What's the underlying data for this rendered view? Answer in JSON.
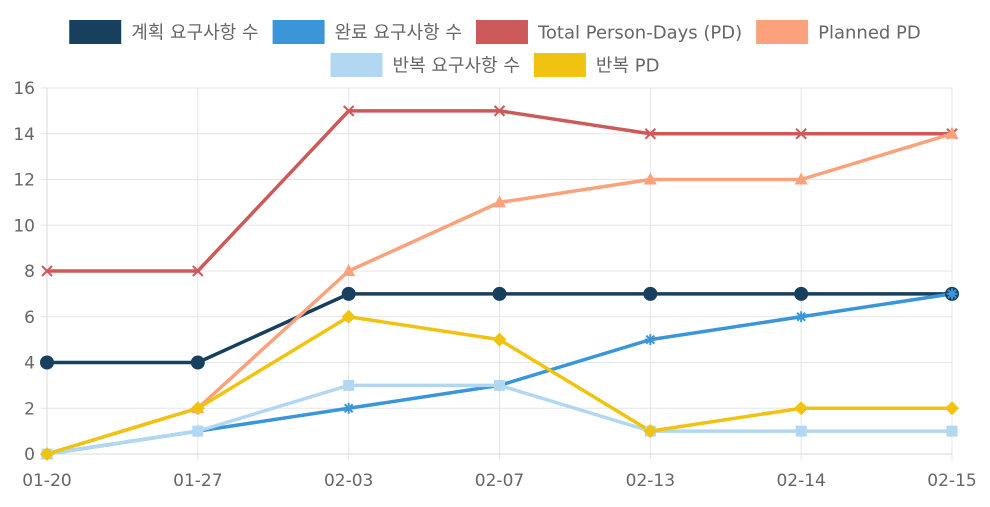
{
  "chart_data": {
    "type": "line",
    "title": "",
    "xlabel": "",
    "ylabel": "",
    "categories": [
      "01-20",
      "01-27",
      "02-03",
      "02-07",
      "02-13",
      "02-14",
      "02-15"
    ],
    "ylim": [
      0,
      16
    ],
    "ytick_step": 2,
    "grid": true,
    "legend_position": "top-center",
    "series": [
      {
        "name": "계획 요구사항 수",
        "color": "#17405f",
        "marker": "circle",
        "values": [
          4,
          4,
          7,
          7,
          7,
          7,
          7
        ]
      },
      {
        "name": "완료 요구사항 수",
        "color": "#3a96d8",
        "marker": "asterisk",
        "values": [
          0,
          1,
          2,
          3,
          5,
          6,
          7
        ]
      },
      {
        "name": "Total Person-Days (PD)",
        "color": "#cd5a5a",
        "marker": "cross",
        "values": [
          8,
          8,
          15,
          15,
          14,
          14,
          14
        ]
      },
      {
        "name": "Planned PD",
        "color": "#fba27c",
        "marker": "triangle",
        "values": [
          0,
          2,
          8,
          11,
          12,
          12,
          14
        ]
      },
      {
        "name": "반복 요구사항 수",
        "color": "#b2d7f1",
        "marker": "square",
        "values": [
          0,
          1,
          3,
          3,
          1,
          1,
          1
        ]
      },
      {
        "name": "반복 PD",
        "color": "#f0c310",
        "marker": "diamond",
        "values": [
          0,
          2,
          6,
          5,
          1,
          2,
          2
        ]
      }
    ]
  }
}
